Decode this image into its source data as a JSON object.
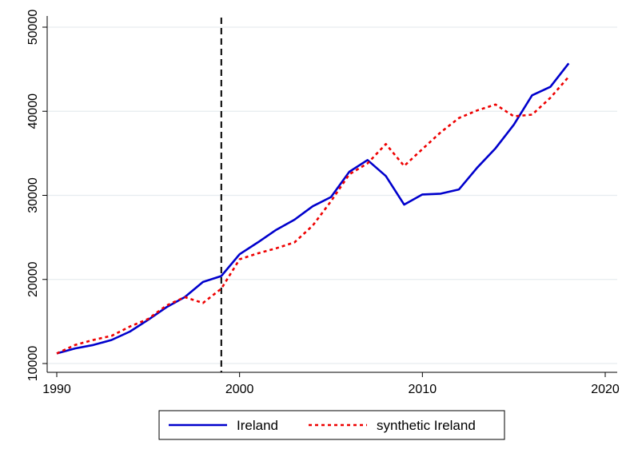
{
  "chart_data": {
    "type": "line",
    "title": "",
    "xlabel": "",
    "ylabel": "",
    "xlim": [
      1990,
      2020
    ],
    "ylim": [
      10000,
      50000
    ],
    "xticks": [
      1990,
      2000,
      2010,
      2020
    ],
    "yticks": [
      10000,
      20000,
      30000,
      40000,
      50000
    ],
    "grid": "horizontal",
    "treatment_year": 1999,
    "legend_position": "bottom",
    "x": [
      1990,
      1991,
      1992,
      1993,
      1994,
      1995,
      1996,
      1997,
      1998,
      1999,
      2000,
      2001,
      2002,
      2003,
      2004,
      2005,
      2006,
      2007,
      2008,
      2009,
      2010,
      2011,
      2012,
      2013,
      2014,
      2015,
      2016,
      2017,
      2018
    ],
    "series": [
      {
        "name": "Ireland",
        "color": "#0000cc",
        "style": "solid",
        "values": [
          11200,
          11800,
          12200,
          12800,
          13800,
          15200,
          16700,
          17900,
          19700,
          20400,
          23000,
          24400,
          25900,
          27100,
          28700,
          29800,
          32800,
          34200,
          32300,
          28900,
          30100,
          30200,
          30700,
          33300,
          35600,
          38400,
          41900,
          42900,
          45700
        ]
      },
      {
        "name": "synthetic Ireland",
        "color": "#ee0000",
        "style": "dashed",
        "values": [
          11200,
          12200,
          12800,
          13300,
          14400,
          15300,
          16900,
          17900,
          17200,
          18900,
          22400,
          23100,
          23700,
          24400,
          26400,
          29300,
          32500,
          33800,
          36100,
          33500,
          35500,
          37500,
          39200,
          40100,
          40800,
          39400,
          39600,
          41600,
          44100
        ]
      }
    ]
  },
  "legend": {
    "items": [
      {
        "label": "Ireland"
      },
      {
        "label": "synthetic Ireland"
      }
    ]
  }
}
